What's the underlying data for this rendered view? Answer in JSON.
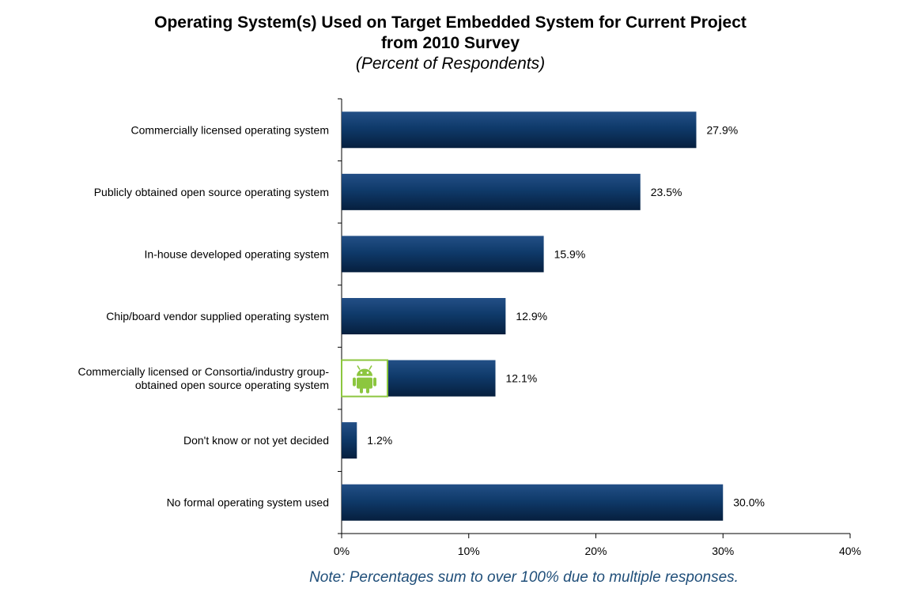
{
  "chart_data": {
    "type": "bar",
    "orientation": "horizontal",
    "title": "Operating System(s) Used on Target Embedded System for Current Project\nfrom 2010 Survey",
    "subtitle": "(Percent of Respondents)",
    "categories": [
      "Commercially licensed operating system",
      "Publicly obtained open source operating system",
      "In-house developed operating system",
      "Chip/board vendor supplied operating system",
      "Commercially licensed or Consortia/industry group-\nobtained open source operating system",
      "Don't know or not yet decided",
      "No formal operating system used"
    ],
    "values": [
      27.9,
      23.5,
      15.9,
      12.9,
      12.1,
      1.2,
      30.0
    ],
    "value_labels": [
      "27.9%",
      "23.5%",
      "15.9%",
      "12.9%",
      "12.1%",
      "1.2%",
      "30.0%"
    ],
    "x_ticks": [
      0,
      10,
      20,
      30,
      40
    ],
    "x_tick_labels": [
      "0%",
      "10%",
      "20%",
      "30%",
      "40%"
    ],
    "xlim": [
      0,
      40
    ],
    "grid": false,
    "legend": "none",
    "bar_color": "#0d3564",
    "icon_on_bar": {
      "category_index": 4,
      "icon": "android-robot-icon",
      "color": "#8cc63f"
    }
  },
  "note": "Note: Percentages sum to over 100% due to multiple responses."
}
